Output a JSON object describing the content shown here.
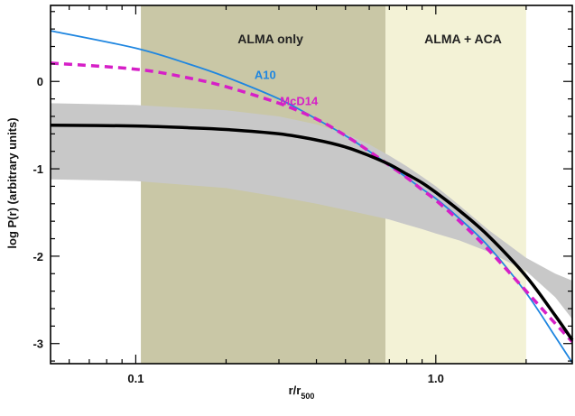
{
  "chart_data": {
    "type": "line",
    "xlabel": "r/r",
    "xlabel_sub": "500",
    "ylabel": "log P(r) (arbitrary units)",
    "xscale": "log",
    "xlim": [
      0.052,
      2.85
    ],
    "ylim": [
      -3.23,
      0.87
    ],
    "x_ticks": [
      {
        "value": 0.1,
        "label": "0.1"
      },
      {
        "value": 1.0,
        "label": "1.0"
      }
    ],
    "y_ticks": [
      {
        "value": 0,
        "label": "0"
      },
      {
        "value": -1,
        "label": "-1"
      },
      {
        "value": -2,
        "label": "-2"
      },
      {
        "value": -3,
        "label": "-3"
      }
    ],
    "regions": [
      {
        "name": "ALMA only",
        "x0": 0.104,
        "x1": 0.68,
        "color": "#c9c7a6"
      },
      {
        "name": "ALMA + ACA",
        "x0": 0.68,
        "x1": 2.0,
        "color": "#f3f2d6"
      }
    ],
    "band": {
      "color": "#c8c8c8",
      "x": [
        0.052,
        0.1,
        0.2,
        0.3,
        0.4,
        0.5,
        0.6,
        0.7,
        0.8,
        0.9,
        1.0,
        1.2,
        1.5,
        2.0,
        2.5,
        2.85
      ],
      "upper": [
        -0.25,
        -0.27,
        -0.33,
        -0.4,
        -0.49,
        -0.6,
        -0.72,
        -0.85,
        -0.97,
        -1.09,
        -1.2,
        -1.42,
        -1.7,
        -2.02,
        -2.2,
        -2.28
      ],
      "lower": [
        -1.12,
        -1.14,
        -1.22,
        -1.32,
        -1.4,
        -1.47,
        -1.53,
        -1.58,
        -1.64,
        -1.69,
        -1.74,
        -1.82,
        -1.95,
        -2.17,
        -2.47,
        -2.72
      ]
    },
    "series": [
      {
        "name": "",
        "color": "#000000",
        "style": "solid",
        "x": [
          0.052,
          0.1,
          0.15,
          0.2,
          0.3,
          0.4,
          0.5,
          0.6,
          0.7,
          0.8,
          0.9,
          1.0,
          1.2,
          1.5,
          2.0,
          2.5,
          2.85
        ],
        "y": [
          -0.5,
          -0.51,
          -0.53,
          -0.55,
          -0.6,
          -0.67,
          -0.75,
          -0.85,
          -0.95,
          -1.06,
          -1.16,
          -1.27,
          -1.48,
          -1.77,
          -2.23,
          -2.68,
          -2.96
        ]
      },
      {
        "name": "A10",
        "color": "#1f86e0",
        "style": "solid",
        "x": [
          0.052,
          0.1,
          0.15,
          0.2,
          0.3,
          0.4,
          0.5,
          0.6,
          0.7,
          0.8,
          0.9,
          1.0,
          1.2,
          1.5,
          2.0,
          2.5,
          2.85
        ],
        "y": [
          0.58,
          0.38,
          0.2,
          0.05,
          -0.2,
          -0.43,
          -0.62,
          -0.8,
          -0.96,
          -1.1,
          -1.23,
          -1.34,
          -1.57,
          -1.89,
          -2.42,
          -2.92,
          -3.22
        ]
      },
      {
        "name": "McD14",
        "color": "#d61fc7",
        "style": "dashed",
        "x": [
          0.052,
          0.1,
          0.15,
          0.2,
          0.3,
          0.4,
          0.5,
          0.6,
          0.7,
          0.8,
          0.9,
          1.0,
          1.2,
          1.5,
          2.0,
          2.5,
          2.85
        ],
        "y": [
          0.21,
          0.14,
          0.04,
          -0.06,
          -0.25,
          -0.43,
          -0.62,
          -0.8,
          -0.96,
          -1.1,
          -1.24,
          -1.36,
          -1.6,
          -1.93,
          -2.4,
          -2.77,
          -2.98
        ]
      }
    ],
    "series_labels": [
      {
        "name": "A10",
        "x": 0.27,
        "y": 0.03,
        "color": "#1f86e0"
      },
      {
        "name": "McD14",
        "x": 0.35,
        "y": -0.27,
        "color": "#d61fc7"
      }
    ]
  }
}
